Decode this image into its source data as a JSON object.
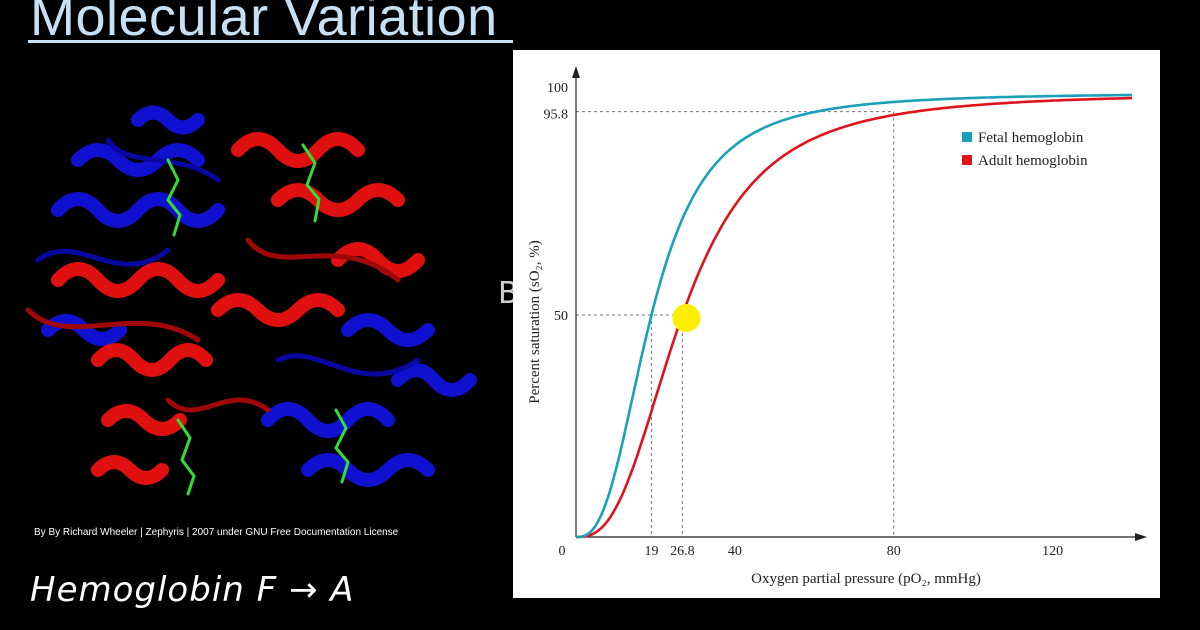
{
  "page": {
    "title": "Molecular Variation",
    "image_credit": "By By Richard Wheeler | Zephyris | 2007 under GNU Free Documentation License",
    "handwritten_note": "Hemoglobin  F → A",
    "margin_mark": "B"
  },
  "colors": {
    "title": "#c6e0f5",
    "fetal": "#1aa0b8",
    "adult": "#e0121a",
    "marker": "#ffee00",
    "helix_blue": "#1010d0",
    "helix_red": "#e01010",
    "heme": "#33dd33"
  },
  "icons": {
    "marker": "yellow-dot-icon",
    "legend_fetal": "teal-square-icon",
    "legend_adult": "red-square-icon"
  },
  "chart_data": {
    "type": "line",
    "title": "",
    "xlabel": "Oxygen partial pressure (pO₂, mmHg)",
    "ylabel": "Percent saturation (sO₂, %)",
    "xlim": [
      0,
      140
    ],
    "ylim": [
      0,
      100
    ],
    "x_ticks": [
      {
        "value": 0,
        "label": "0"
      },
      {
        "value": 19,
        "label": "19"
      },
      {
        "value": 26.8,
        "label": "26.8"
      },
      {
        "value": 40,
        "label": "40"
      },
      {
        "value": 80,
        "label": "80"
      },
      {
        "value": 120,
        "label": "120"
      }
    ],
    "y_ticks": [
      {
        "value": 50,
        "label": "50"
      },
      {
        "value": 95.8,
        "label": "95.8"
      },
      {
        "value": 100,
        "label": "100"
      }
    ],
    "grid": false,
    "legend_position": "top-right",
    "series": [
      {
        "name": "Fetal hemoglobin",
        "p50": 19,
        "hill": 2.7
      },
      {
        "name": "Adult hemoglobin",
        "p50": 26.8,
        "hill": 2.7
      }
    ],
    "reference_lines": [
      {
        "x": 19,
        "y": 50
      },
      {
        "x": 26.8,
        "y": 50
      },
      {
        "x": 80,
        "y": 95.8
      }
    ],
    "marker": {
      "x": 26.8,
      "y": 50
    }
  }
}
